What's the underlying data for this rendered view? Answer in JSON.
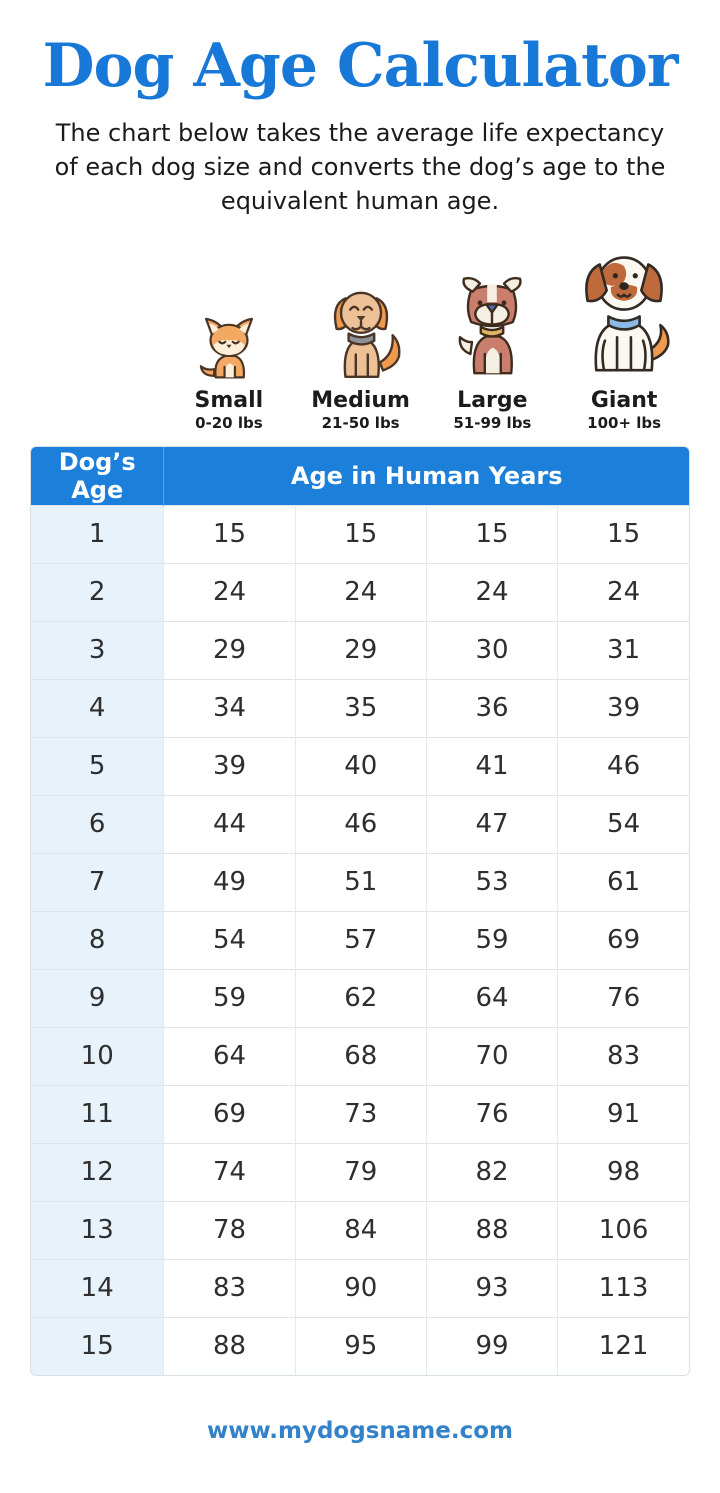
{
  "header": {
    "title": "Dog Age Calculator",
    "subtitle": "The chart below takes the average life expectancy of each dog size and converts the dog’s age to the equivalent human age."
  },
  "sizes": [
    {
      "label": "Small",
      "weight": "0-20 lbs",
      "icon": "small-dog-icon"
    },
    {
      "label": "Medium",
      "weight": "21-50 lbs",
      "icon": "medium-dog-icon"
    },
    {
      "label": "Large",
      "weight": "51-99 lbs",
      "icon": "large-dog-icon"
    },
    {
      "label": "Giant",
      "weight": "100+ lbs",
      "icon": "giant-dog-icon"
    }
  ],
  "table": {
    "col1_header": "Dog’s Age",
    "span_header": "Age in Human Years",
    "rows": [
      {
        "age": "1",
        "values": [
          "15",
          "15",
          "15",
          "15"
        ]
      },
      {
        "age": "2",
        "values": [
          "24",
          "24",
          "24",
          "24"
        ]
      },
      {
        "age": "3",
        "values": [
          "29",
          "29",
          "30",
          "31"
        ]
      },
      {
        "age": "4",
        "values": [
          "34",
          "35",
          "36",
          "39"
        ]
      },
      {
        "age": "5",
        "values": [
          "39",
          "40",
          "41",
          "46"
        ]
      },
      {
        "age": "6",
        "values": [
          "44",
          "46",
          "47",
          "54"
        ]
      },
      {
        "age": "7",
        "values": [
          "49",
          "51",
          "53",
          "61"
        ]
      },
      {
        "age": "8",
        "values": [
          "54",
          "57",
          "59",
          "69"
        ]
      },
      {
        "age": "9",
        "values": [
          "59",
          "62",
          "64",
          "76"
        ]
      },
      {
        "age": "10",
        "values": [
          "64",
          "68",
          "70",
          "83"
        ]
      },
      {
        "age": "11",
        "values": [
          "69",
          "73",
          "76",
          "91"
        ]
      },
      {
        "age": "12",
        "values": [
          "74",
          "79",
          "82",
          "98"
        ]
      },
      {
        "age": "13",
        "values": [
          "78",
          "84",
          "88",
          "106"
        ]
      },
      {
        "age": "14",
        "values": [
          "83",
          "90",
          "93",
          "113"
        ]
      },
      {
        "age": "15",
        "values": [
          "88",
          "95",
          "99",
          "121"
        ]
      }
    ]
  },
  "footer": {
    "url": "www.mydogsname.com"
  },
  "colors": {
    "title_blue": "#1878d8",
    "table_header_blue": "#1c7fd9",
    "age_column_bg": "#e7f2fb",
    "row_border": "#dde4ea",
    "footer_blue": "#3382c9",
    "cell_text": "#2e2e2e"
  },
  "chart_data": {
    "type": "table",
    "title": "Dog Age Calculator",
    "xlabel": "Dog’s Age",
    "ylabel": "Age in Human Years",
    "x": [
      1,
      2,
      3,
      4,
      5,
      6,
      7,
      8,
      9,
      10,
      11,
      12,
      13,
      14,
      15
    ],
    "series": [
      {
        "name": "Small (0-20 lbs)",
        "values": [
          15,
          24,
          29,
          34,
          39,
          44,
          49,
          54,
          59,
          64,
          69,
          74,
          78,
          83,
          88
        ]
      },
      {
        "name": "Medium (21-50 lbs)",
        "values": [
          15,
          24,
          29,
          35,
          40,
          46,
          51,
          57,
          62,
          68,
          73,
          79,
          84,
          90,
          95
        ]
      },
      {
        "name": "Large (51-99 lbs)",
        "values": [
          15,
          24,
          30,
          36,
          41,
          47,
          53,
          59,
          64,
          70,
          76,
          82,
          88,
          93,
          99
        ]
      },
      {
        "name": "Giant (100+ lbs)",
        "values": [
          15,
          24,
          31,
          39,
          46,
          54,
          61,
          69,
          76,
          83,
          91,
          98,
          106,
          113,
          121
        ]
      }
    ]
  }
}
